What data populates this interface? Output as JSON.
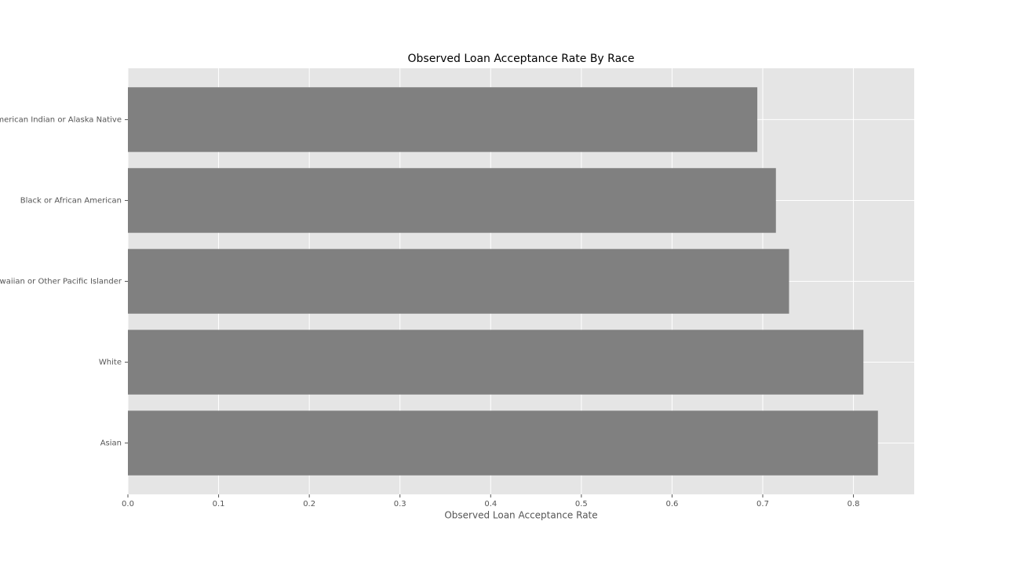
{
  "chart_data": {
    "type": "barh",
    "title": "Observed Loan Acceptance Rate By Race",
    "x_label": "Observed Loan Acceptance Rate",
    "categories": [
      "American Indian or Alaska Native",
      "Black or African American",
      "Native Hawaiian or Other Pacific Islander",
      "White",
      "Asian"
    ],
    "values": [
      0.694,
      0.7145,
      0.729,
      0.811,
      0.827
    ],
    "color": "#808080",
    "xlim": [
      0,
      0.867
    ],
    "xticks": [
      {
        "value": 0,
        "label": "0.0"
      },
      0.1,
      0.2,
      0.3,
      0.4,
      0.5,
      0.6,
      0.7,
      0.8
    ],
    "grid": true
  }
}
